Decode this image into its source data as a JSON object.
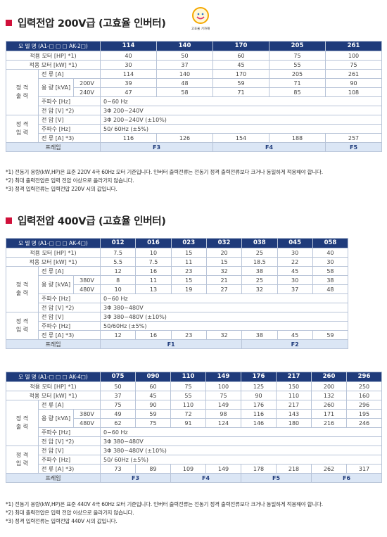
{
  "section1": {
    "title": "입력전압 200V급 (고효율 인버터)",
    "logo_text": "고효율 기자재",
    "model_label": "모 델 명 (A1-□ □ □ AK-2□)",
    "models": [
      "114",
      "140",
      "170",
      "205",
      "261"
    ],
    "motor_hp_label": "적용 모터 [HP] *1)",
    "motor_hp": [
      "40",
      "50",
      "60",
      "75",
      "100"
    ],
    "motor_kw_label": "적용 모터 [kW] *1)",
    "motor_kw": [
      "30",
      "37",
      "45",
      "55",
      "75"
    ],
    "rated_output_label": "정 격\n출 력",
    "current_label": "전 류 [A]",
    "current": [
      "114",
      "140",
      "170",
      "205",
      "261"
    ],
    "capacity_label": "용 량 [kVA]",
    "v1_label": "200V",
    "capacity_v1": [
      "39",
      "48",
      "59",
      "71",
      "90"
    ],
    "v2_label": "240V",
    "capacity_v2": [
      "47",
      "58",
      "71",
      "85",
      "108"
    ],
    "out_freq_label": "주파수 [Hz]",
    "out_freq": "0~60 Hz",
    "out_volt_label": "전 압 [V] *2)",
    "out_volt": "3Φ 200~240V",
    "rated_input_label": "정 격\n입 력",
    "in_volt_label": "전 압 [V]",
    "in_volt": "3Φ 200~240V (±10%)",
    "in_freq_label": "주파수 [Hz]",
    "in_freq": "50/ 60Hz (±5%)",
    "in_current_label": "전 류 [A] *3)",
    "in_current": [
      "116",
      "126",
      "154",
      "188",
      "257"
    ],
    "frame_label": "프레임",
    "frames": [
      "F3",
      "F4",
      "F5"
    ],
    "notes": [
      "*1) 전동기 용량(kW,HP)은 표준 220V 4극 60Hz 모터 기준입니다. 인버터 출력전류는 전동기 정격 출력전류보다 크거나 동일하게 적용해야 합니다.",
      "*2) 최대 출력전압은 입력 전압 이상으로 올라가지 않습니다.",
      "*3) 정격 입력전류는 입력전압 220V 시의 값입니다."
    ]
  },
  "section2": {
    "title": "입력전압 400V급 (고효율 인버터)",
    "model_label": "모 델 명 (A1-□ □ □ AK-4□)",
    "models": [
      "012",
      "016",
      "023",
      "032",
      "038",
      "045",
      "058"
    ],
    "motor_hp_label": "적용 모터 [HP] *1)",
    "motor_hp": [
      "7.5",
      "10",
      "15",
      "20",
      "25",
      "30",
      "40"
    ],
    "motor_kw_label": "적용 모터 [kW] *1)",
    "motor_kw": [
      "5.5",
      "7.5",
      "11",
      "15",
      "18.5",
      "22",
      "30"
    ],
    "rated_output_label": "정 격\n출 력",
    "current_label": "전 류 [A]",
    "current": [
      "12",
      "16",
      "23",
      "32",
      "38",
      "45",
      "58"
    ],
    "capacity_label": "용 량 [kVA]",
    "v1_label": "380V",
    "capacity_v1": [
      "8",
      "11",
      "15",
      "21",
      "25",
      "30",
      "38"
    ],
    "v2_label": "480V",
    "capacity_v2": [
      "10",
      "13",
      "19",
      "27",
      "32",
      "37",
      "48"
    ],
    "out_freq_label": "주파수 [Hz]",
    "out_freq": "0~60 Hz",
    "out_volt_label": "전 압 [V] *2)",
    "out_volt": "3Φ 380~480V",
    "rated_input_label": "정 격\n입 력",
    "in_volt_label": "전 압 [V]",
    "in_volt": "3Φ 380~480V (±10%)",
    "in_freq_label": "주파수 [Hz]",
    "in_freq": "50/60Hz (±5%)",
    "in_current_label": "전 류 [A] *3)",
    "in_current": [
      "12",
      "16",
      "23",
      "32",
      "38",
      "45",
      "59"
    ],
    "frame_label": "프레임",
    "frames": [
      "F1",
      "F2"
    ]
  },
  "section3": {
    "model_label": "모 델 명 (A1-□ □ □ AK-4□)",
    "models": [
      "075",
      "090",
      "110",
      "149",
      "176",
      "217",
      "260",
      "296"
    ],
    "motor_hp_label": "적용 모터 [HP] *1)",
    "motor_hp": [
      "50",
      "60",
      "75",
      "100",
      "125",
      "150",
      "200",
      "250"
    ],
    "motor_kw_label": "적용 모터 [kW] *1)",
    "motor_kw": [
      "37",
      "45",
      "55",
      "75",
      "90",
      "110",
      "132",
      "160"
    ],
    "rated_output_label": "정 격\n출 력",
    "current_label": "전 류 [A]",
    "current": [
      "75",
      "90",
      "110",
      "149",
      "176",
      "217",
      "260",
      "296"
    ],
    "capacity_label": "용 량 [kVA]",
    "v1_label": "380V",
    "capacity_v1": [
      "49",
      "59",
      "72",
      "98",
      "116",
      "143",
      "171",
      "195"
    ],
    "v2_label": "480V",
    "capacity_v2": [
      "62",
      "75",
      "91",
      "124",
      "146",
      "180",
      "216",
      "246"
    ],
    "out_freq_label": "주파수 [Hz]",
    "out_freq": "0~60 Hz",
    "out_volt_label": "전 압 [V] *2)",
    "out_volt": "3Φ 380~480V",
    "rated_input_label": "정 격\n입 력",
    "in_volt_label": "전 압 [V]",
    "in_volt": "3Φ 380~480V (±10%)",
    "in_freq_label": "주파수 [Hz]",
    "in_freq": "50/ 60Hz (±5%)",
    "in_current_label": "전 류 [A] *3)",
    "in_current": [
      "73",
      "89",
      "109",
      "149",
      "178",
      "218",
      "262",
      "317"
    ],
    "frame_label": "프레임",
    "frames": [
      "F3",
      "F4",
      "F5",
      "F6"
    ],
    "notes": [
      "*1) 전동기 용량(kW,HP)은 표준 440V 4극 60Hz 모터 기준입니다. 인버터 출력전류는 전동기 정격 출력전류보다 크거나 동일하게 적용해야 합니다.",
      "*2) 최대 출력전압은 입력 전압 이상으로 올라가지 않습니다.",
      "*3) 정격 입력전류는 입력전압 440V 시의 값입니다."
    ]
  }
}
